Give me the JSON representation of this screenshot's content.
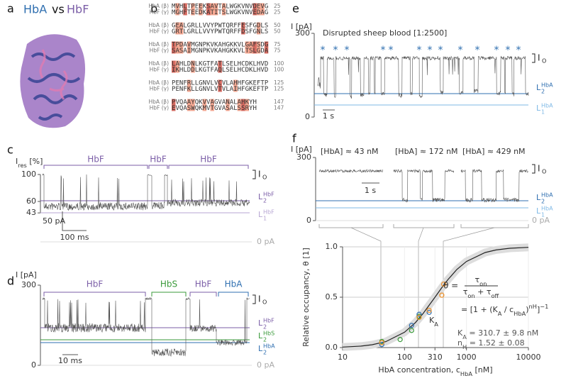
{
  "panel_a": {
    "label": "a",
    "title_hba": "HbA",
    "title_vs": "vs",
    "title_hbf": "HbF"
  },
  "panel_b": {
    "label": "b",
    "rows": [
      [
        {
          "name": "HbA (β)",
          "seq": "MVHLTPEEKSAVTALWGKVNVDEVG",
          "num": "25"
        },
        {
          "name": "HbF (γ)",
          "seq": "MGHFTEEDKATITSLWGKVNVEDAG",
          "num": "25"
        }
      ],
      [
        {
          "name": "HbA (β)",
          "seq": "GEALGRLLVVYPWTQRFFESFGDLS",
          "num": "50"
        },
        {
          "name": "HbF (γ)",
          "seq": "GRTLGRLLVVYPWTQRFFDSFGNLS",
          "num": "50"
        }
      ],
      [
        {
          "name": "HbA (β)",
          "seq": "TPDAVMGNPKVKAHGKKVLGAFSDG",
          "num": "75"
        },
        {
          "name": "HbF (γ)",
          "seq": "SASAIMGNPKVKAHGKKVLTSLGDA",
          "num": "75"
        }
      ],
      [
        {
          "name": "HbA (β)",
          "seq": "LAHLDNLKGTFATLSELHCDKLHVD",
          "num": "100"
        },
        {
          "name": "HbF (γ)",
          "seq": "IKHLDDLKGTFAQLSELHCDKLHVD",
          "num": "100"
        }
      ],
      [
        {
          "name": "HbA (β)",
          "seq": "PENFRLLGNVLVCVLAHHFGKEFTP",
          "num": "125"
        },
        {
          "name": "HbF (γ)",
          "seq": "PENFKLLGNVLVTVLAIHFGKEFTP",
          "num": "125"
        }
      ],
      [
        {
          "name": "HbA (β)",
          "seq": "PVQAAYQKVVAGVANALAHKYH",
          "num": "147"
        },
        {
          "name": "HbF (γ)",
          "seq": "EVQASWQKMVTGVASALSSRYH",
          "num": "147"
        }
      ]
    ]
  },
  "panel_c": {
    "label": "c",
    "ylabel": [
      {
        "t": "I"
      },
      {
        "sub": "res"
      },
      {
        "t": " [%]"
      }
    ],
    "ylim": [
      0,
      100
    ],
    "yticks": [
      100,
      60,
      43
    ],
    "segment_labels": [
      "HbF",
      "HbF",
      "HbF"
    ],
    "open_level": {
      "main": "I",
      "sub": "O"
    },
    "levels": [
      {
        "main": "L",
        "sub": "2",
        "sup": "HbF"
      },
      {
        "main": "L",
        "sub": "1",
        "sup": "HbF"
      }
    ],
    "scale_y": "50 pA",
    "scale_x": "100 ms",
    "zero": "0 pA"
  },
  "panel_d": {
    "label": "d",
    "ylabel": "I [pA]",
    "ylim": [
      0,
      300
    ],
    "yticks": [
      0,
      300
    ],
    "segment_labels": [
      "HbF",
      "HbS",
      "HbF",
      "HbA"
    ],
    "open_level": {
      "main": "I",
      "sub": "O"
    },
    "levels": [
      {
        "main": "L",
        "sub": "2",
        "sup": "HbF"
      },
      {
        "main": "L",
        "sub": "2",
        "sup": "HbS"
      },
      {
        "main": "L",
        "sub": "2",
        "sup": "HbA"
      }
    ],
    "scale_x": "10 ms",
    "zero": "0 pA"
  },
  "panel_e": {
    "label": "e",
    "ylabel": "I [pA]",
    "title": "Disrupted sheep blood [1:2500]",
    "ylim": [
      0,
      300
    ],
    "yticks": [
      0,
      300
    ],
    "event_marker": "*",
    "open_level": {
      "main": "I",
      "sub": "O"
    },
    "levels": [
      {
        "main": "L",
        "sub": "2",
        "sup": "HbA"
      },
      {
        "main": "L",
        "sub": "1",
        "sup": "HbA"
      }
    ],
    "scale_x": "1 s"
  },
  "panel_f": {
    "label": "f",
    "top": {
      "ylabel": "I [pA]",
      "ylim": [
        0,
        300
      ],
      "yticks": [
        0,
        300
      ],
      "conditions": [
        "[HbA] ≈ 43 nM",
        "[HbA] ≈ 172 nM",
        "[HbA] ≈ 429 nM"
      ],
      "open_level": {
        "main": "I",
        "sub": "O"
      },
      "levels": [
        {
          "main": "L",
          "sub": "2",
          "sup": "HbA"
        },
        {
          "main": "L",
          "sub": "1",
          "sup": "HbA"
        }
      ],
      "scale_x": "1 s",
      "zero": "0 pA"
    },
    "chart": {
      "type": "scatter",
      "ylabel": "Relative occupancy, θ [1]",
      "xlabel": [
        {
          "t": "HbA concentration, c"
        },
        {
          "sub": "HbA"
        },
        {
          "t": " [nM]"
        }
      ],
      "xscale": "log",
      "xlim": [
        10,
        10000
      ],
      "ylim": [
        0,
        1
      ],
      "xticks": [
        10,
        100,
        310,
        1000,
        10000
      ],
      "yticks": [
        {
          "value": 0,
          "label": "0.0"
        },
        {
          "value": 0.5,
          "label": "0.5"
        },
        {
          "value": 1,
          "label": "1.0"
        }
      ],
      "series": [
        {
          "color": "#3a9a3a",
          "x": [
            43,
            85,
            130,
            172
          ],
          "values": [
            0.06,
            0.08,
            0.17,
            0.31
          ]
        },
        {
          "color": "#2f6fb0",
          "x": [
            43,
            130,
            172,
            250
          ],
          "values": [
            0.03,
            0.22,
            0.33,
            0.35
          ]
        },
        {
          "color": "#f0922a",
          "x": [
            43,
            172,
            250,
            400,
            429
          ],
          "values": [
            0.05,
            0.3,
            0.37,
            0.52,
            0.63
          ]
        }
      ],
      "fit": {
        "color": "#222222",
        "x": [
          10,
          20,
          30,
          50,
          100,
          150,
          200,
          310.7,
          400,
          500,
          700,
          1000,
          2000,
          3000,
          5000,
          10000
        ],
        "values": [
          0.005,
          0.015,
          0.028,
          0.059,
          0.152,
          0.248,
          0.339,
          0.5,
          0.595,
          0.673,
          0.775,
          0.855,
          0.944,
          0.969,
          0.986,
          0.995
        ]
      },
      "ka_label": [
        {
          "t": "K"
        },
        {
          "sub": "A"
        }
      ],
      "eq1_lhs": "θ =",
      "eq1_num": [
        {
          "t": "τ"
        },
        {
          "sub": "on"
        }
      ],
      "eq1_den": [
        {
          "t": "τ"
        },
        {
          "sub": "on"
        },
        {
          "t": " + τ"
        },
        {
          "sub": "off"
        }
      ],
      "eq2": [
        {
          "t": "= [1 + ("
        },
        {
          "t": "K"
        },
        {
          "sub": "A"
        },
        {
          "t": " / c"
        },
        {
          "sub": "HbA"
        },
        {
          "t": ")"
        },
        {
          "sup": "nH"
        },
        {
          "t": "]"
        },
        {
          "sup": "−1"
        }
      ],
      "result_ka": [
        {
          "t": "K"
        },
        {
          "sub": "A"
        },
        {
          "t": " = 310.7 ± 9.8 nM"
        }
      ],
      "result_nh": [
        {
          "t": "n"
        },
        {
          "sub": "H"
        },
        {
          "t": " = 1.52 ± 0.08"
        }
      ]
    }
  }
}
